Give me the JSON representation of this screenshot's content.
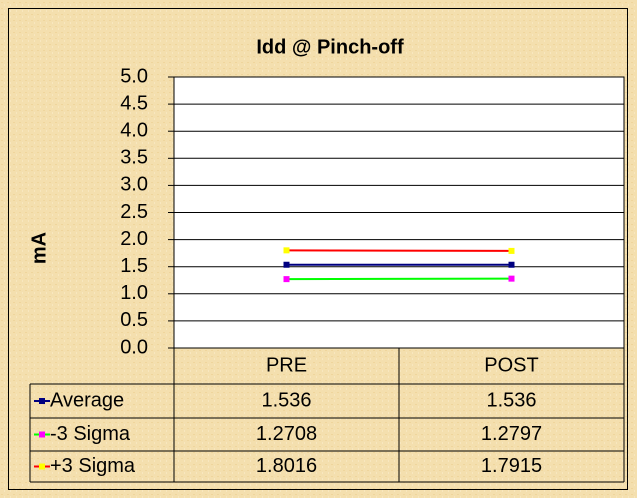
{
  "chart_data": {
    "type": "line",
    "title": "Idd @ Pinch-off",
    "y_label": "mA",
    "categories": [
      "PRE",
      "POST"
    ],
    "series": [
      {
        "name": "Average",
        "color": "#000080",
        "marker_color": "#000080",
        "values": [
          1.536,
          1.536
        ]
      },
      {
        "name": "-3 Sigma",
        "color": "#00ff00",
        "marker_color": "#ff00ff",
        "values": [
          1.2708,
          1.2797
        ]
      },
      {
        "name": "+3 Sigma",
        "color": "#ff0000",
        "marker_color": "#ffff00",
        "values": [
          1.8016,
          1.7915
        ]
      }
    ],
    "ylim": [
      0,
      5
    ],
    "yticks": [
      {
        "value": 0,
        "label": "0.0"
      },
      {
        "value": 0.5,
        "label": "0.5"
      },
      {
        "value": 1,
        "label": "1.0"
      },
      {
        "value": 1.5,
        "label": "1.5"
      },
      {
        "value": 2,
        "label": "2.0"
      },
      {
        "value": 2.5,
        "label": "2.5"
      },
      {
        "value": 3,
        "label": "3.0"
      },
      {
        "value": 3.5,
        "label": "3.5"
      },
      {
        "value": 4,
        "label": "4.0"
      },
      {
        "value": 4.5,
        "label": "4.5"
      },
      {
        "value": 5,
        "label": "5.0"
      }
    ],
    "grid": true,
    "data_table": true
  }
}
